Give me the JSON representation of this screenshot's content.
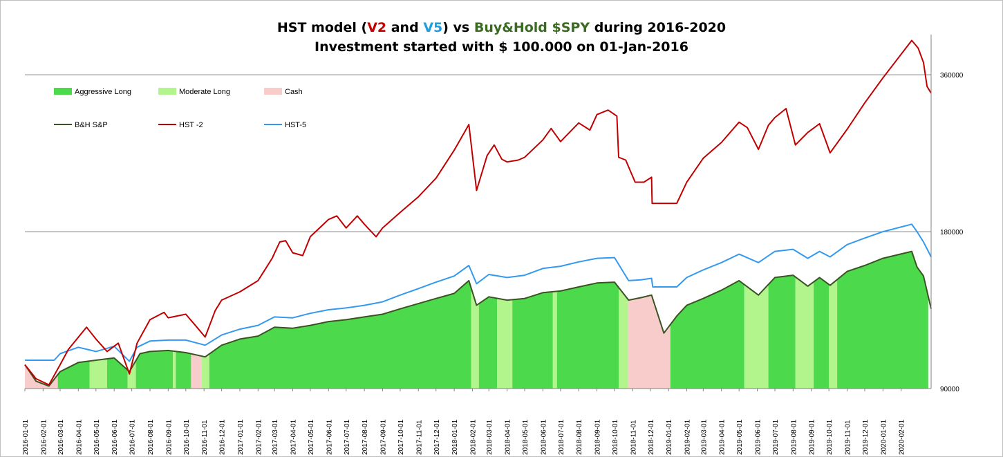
{
  "title": {
    "line1_a": "HST model (",
    "line1_v2": "V2",
    "line1_b": " and ",
    "line1_v5": "V5",
    "line1_c": ") vs ",
    "line1_bh": "Buy&Hold $SPY",
    "line1_d": " during 2016-2020",
    "line2": "Investment started with $ 100.000 on 01-Jan-2016"
  },
  "colors": {
    "aggressive": "#4cd94c",
    "moderate": "#b2f58c",
    "cash": "#f9cccc",
    "bh": "#3b5323",
    "hst2": "#c00000",
    "hst5": "#3399ee",
    "grid": "#808080"
  },
  "chart_data": {
    "type": "line",
    "y_scale": "log",
    "ylim": [
      90000,
      430000
    ],
    "y_ticks": [
      90000,
      180000,
      360000
    ],
    "y_tick_labels": [
      "90000",
      "180000",
      "360000"
    ],
    "x_tick_labels": [
      "2016-01-01",
      "2016-02-01",
      "2016-03-01",
      "2016-04-01",
      "2016-05-01",
      "2016-06-01",
      "2016-07-01",
      "2016-08-01",
      "2016-09-01",
      "2016-10-01",
      "2016-11-01",
      "2016-12-01",
      "2017-01-01",
      "2017-02-01",
      "2017-03-01",
      "2017-04-01",
      "2017-05-01",
      "2017-06-01",
      "2017-07-01",
      "2017-08-01",
      "2017-09-01",
      "2017-10-01",
      "2017-11-01",
      "2017-12-01",
      "2018-01-01",
      "2018-02-01",
      "2018-03-01",
      "2018-04-01",
      "2018-05-01",
      "2018-06-01",
      "2018-07-01",
      "2018-08-01",
      "2018-09-01",
      "2018-10-01",
      "2018-11-01",
      "2018-12-01",
      "2019-01-01",
      "2019-02-01",
      "2019-03-01",
      "2019-04-01",
      "2019-05-01",
      "2019-06-01",
      "2019-07-01",
      "2019-08-01",
      "2019-09-01",
      "2019-10-01",
      "2019-11-01",
      "2019-12-01",
      "2020-01-01",
      "2020-02-01"
    ],
    "x_end": "2020-03-23",
    "legend": [
      {
        "name": "Aggressive Long",
        "kind": "area",
        "color_key": "aggressive"
      },
      {
        "name": "Moderate Long",
        "kind": "area",
        "color_key": "moderate"
      },
      {
        "name": "Cash",
        "kind": "area",
        "color_key": "cash"
      },
      {
        "name": "B&H S&P",
        "kind": "line",
        "color_key": "bh"
      },
      {
        "name": "HST -2",
        "kind": "line",
        "color_key": "hst2"
      },
      {
        "name": "HST-5",
        "kind": "line",
        "color_key": "hst5"
      }
    ],
    "series": [
      {
        "name": "B&H S&P",
        "points": [
          [
            "2016-01-01",
            100000
          ],
          [
            "2016-01-20",
            93000
          ],
          [
            "2016-02-11",
            91000
          ],
          [
            "2016-03-01",
            97000
          ],
          [
            "2016-04-01",
            101000
          ],
          [
            "2016-05-01",
            102000
          ],
          [
            "2016-06-01",
            103000
          ],
          [
            "2016-06-27",
            97000
          ],
          [
            "2016-07-15",
            105000
          ],
          [
            "2016-08-01",
            106000
          ],
          [
            "2016-09-01",
            106500
          ],
          [
            "2016-10-01",
            105500
          ],
          [
            "2016-11-03",
            103500
          ],
          [
            "2016-12-01",
            109000
          ],
          [
            "2017-01-01",
            112000
          ],
          [
            "2017-02-01",
            113500
          ],
          [
            "2017-03-01",
            118000
          ],
          [
            "2017-04-01",
            117500
          ],
          [
            "2017-05-01",
            119000
          ],
          [
            "2017-06-01",
            121000
          ],
          [
            "2017-07-01",
            122000
          ],
          [
            "2017-08-01",
            123500
          ],
          [
            "2017-09-01",
            125000
          ],
          [
            "2017-10-01",
            128000
          ],
          [
            "2017-11-01",
            131000
          ],
          [
            "2017-12-01",
            134000
          ],
          [
            "2018-01-01",
            137000
          ],
          [
            "2018-01-26",
            145000
          ],
          [
            "2018-02-08",
            130000
          ],
          [
            "2018-03-01",
            135000
          ],
          [
            "2018-04-01",
            133000
          ],
          [
            "2018-05-01",
            134000
          ],
          [
            "2018-06-01",
            137500
          ],
          [
            "2018-07-01",
            138500
          ],
          [
            "2018-08-01",
            141000
          ],
          [
            "2018-09-01",
            143500
          ],
          [
            "2018-10-01",
            144000
          ],
          [
            "2018-10-25",
            133000
          ],
          [
            "2018-11-15",
            134500
          ],
          [
            "2018-12-03",
            136000
          ],
          [
            "2018-12-24",
            115000
          ],
          [
            "2019-01-15",
            124000
          ],
          [
            "2019-02-01",
            130000
          ],
          [
            "2019-03-01",
            134000
          ],
          [
            "2019-04-01",
            139000
          ],
          [
            "2019-05-01",
            145000
          ],
          [
            "2019-06-03",
            136000
          ],
          [
            "2019-07-01",
            147000
          ],
          [
            "2019-08-01",
            148500
          ],
          [
            "2019-08-26",
            141500
          ],
          [
            "2019-09-15",
            147000
          ],
          [
            "2019-10-03",
            142000
          ],
          [
            "2019-11-01",
            151000
          ],
          [
            "2019-12-01",
            155000
          ],
          [
            "2020-01-01",
            160000
          ],
          [
            "2020-02-19",
            165000
          ],
          [
            "2020-02-28",
            154000
          ],
          [
            "2020-03-10",
            148000
          ],
          [
            "2020-03-23",
            128000
          ]
        ]
      },
      {
        "name": "HST -2",
        "points": [
          [
            "2016-01-01",
            100000
          ],
          [
            "2016-01-20",
            94000
          ],
          [
            "2016-02-11",
            91500
          ],
          [
            "2016-03-01",
            100000
          ],
          [
            "2016-03-15",
            107000
          ],
          [
            "2016-04-15",
            118000
          ],
          [
            "2016-05-01",
            112000
          ],
          [
            "2016-05-20",
            106000
          ],
          [
            "2016-06-08",
            110000
          ],
          [
            "2016-06-27",
            96000
          ],
          [
            "2016-07-10",
            110000
          ],
          [
            "2016-08-01",
            122000
          ],
          [
            "2016-08-25",
            126000
          ],
          [
            "2016-09-01",
            123000
          ],
          [
            "2016-10-01",
            125000
          ],
          [
            "2016-10-20",
            118000
          ],
          [
            "2016-11-03",
            113000
          ],
          [
            "2016-11-20",
            127000
          ],
          [
            "2016-12-01",
            133000
          ],
          [
            "2017-01-01",
            138000
          ],
          [
            "2017-02-01",
            145000
          ],
          [
            "2017-02-25",
            160000
          ],
          [
            "2017-03-10",
            172000
          ],
          [
            "2017-03-20",
            173000
          ],
          [
            "2017-04-01",
            164000
          ],
          [
            "2017-04-18",
            162000
          ],
          [
            "2017-05-01",
            176000
          ],
          [
            "2017-06-01",
            190000
          ],
          [
            "2017-06-15",
            193000
          ],
          [
            "2017-07-01",
            183000
          ],
          [
            "2017-07-20",
            193000
          ],
          [
            "2017-08-01",
            186000
          ],
          [
            "2017-08-21",
            176000
          ],
          [
            "2017-09-01",
            183000
          ],
          [
            "2017-10-01",
            196000
          ],
          [
            "2017-11-01",
            210000
          ],
          [
            "2017-12-01",
            228000
          ],
          [
            "2018-01-01",
            258000
          ],
          [
            "2018-01-26",
            289000
          ],
          [
            "2018-02-08",
            216000
          ],
          [
            "2018-02-26",
            252000
          ],
          [
            "2018-03-10",
            264000
          ],
          [
            "2018-03-23",
            248000
          ],
          [
            "2018-04-01",
            245000
          ],
          [
            "2018-04-20",
            247000
          ],
          [
            "2018-05-01",
            250000
          ],
          [
            "2018-06-01",
            270000
          ],
          [
            "2018-06-15",
            284000
          ],
          [
            "2018-07-01",
            268000
          ],
          [
            "2018-08-01",
            291000
          ],
          [
            "2018-08-20",
            282000
          ],
          [
            "2018-09-01",
            302000
          ],
          [
            "2018-09-20",
            308000
          ],
          [
            "2018-10-05",
            300000
          ],
          [
            "2018-10-08",
            250000
          ],
          [
            "2018-10-20",
            247000
          ],
          [
            "2018-11-05",
            224000
          ],
          [
            "2018-11-20",
            224000
          ],
          [
            "2018-12-03",
            229000
          ],
          [
            "2018-12-04",
            204000
          ],
          [
            "2019-01-15",
            204000
          ],
          [
            "2019-02-01",
            224000
          ],
          [
            "2019-03-01",
            249000
          ],
          [
            "2019-04-01",
            267000
          ],
          [
            "2019-05-01",
            292000
          ],
          [
            "2019-05-15",
            285000
          ],
          [
            "2019-06-03",
            259000
          ],
          [
            "2019-06-20",
            288000
          ],
          [
            "2019-07-01",
            298000
          ],
          [
            "2019-07-20",
            310000
          ],
          [
            "2019-08-05",
            264000
          ],
          [
            "2019-08-26",
            279000
          ],
          [
            "2019-09-15",
            290000
          ],
          [
            "2019-10-03",
            255000
          ],
          [
            "2019-11-01",
            283000
          ],
          [
            "2019-12-01",
            318000
          ],
          [
            "2020-01-01",
            355000
          ],
          [
            "2020-02-19",
            419000
          ],
          [
            "2020-03-01",
            405000
          ],
          [
            "2020-03-10",
            380000
          ],
          [
            "2020-03-16",
            342000
          ],
          [
            "2020-03-23",
            332000
          ]
        ]
      },
      {
        "name": "HST-5",
        "points": [
          [
            "2016-01-01",
            102000
          ],
          [
            "2016-02-20",
            102000
          ],
          [
            "2016-03-01",
            105000
          ],
          [
            "2016-04-01",
            108000
          ],
          [
            "2016-05-01",
            106000
          ],
          [
            "2016-06-01",
            108500
          ],
          [
            "2016-06-27",
            101500
          ],
          [
            "2016-07-10",
            108000
          ],
          [
            "2016-08-01",
            111000
          ],
          [
            "2016-09-01",
            111500
          ],
          [
            "2016-10-01",
            111500
          ],
          [
            "2016-11-03",
            109000
          ],
          [
            "2016-12-01",
            114000
          ],
          [
            "2017-01-01",
            117000
          ],
          [
            "2017-02-01",
            119000
          ],
          [
            "2017-03-01",
            123500
          ],
          [
            "2017-04-01",
            123000
          ],
          [
            "2017-05-01",
            125500
          ],
          [
            "2017-06-01",
            127500
          ],
          [
            "2017-07-01",
            128500
          ],
          [
            "2017-08-01",
            130000
          ],
          [
            "2017-09-01",
            132000
          ],
          [
            "2017-10-01",
            136000
          ],
          [
            "2017-11-01",
            140000
          ],
          [
            "2017-12-01",
            144000
          ],
          [
            "2018-01-01",
            148000
          ],
          [
            "2018-01-26",
            155000
          ],
          [
            "2018-02-08",
            143000
          ],
          [
            "2018-03-01",
            149000
          ],
          [
            "2018-04-01",
            147000
          ],
          [
            "2018-05-01",
            148500
          ],
          [
            "2018-06-01",
            153000
          ],
          [
            "2018-07-01",
            154500
          ],
          [
            "2018-08-01",
            157500
          ],
          [
            "2018-09-01",
            160000
          ],
          [
            "2018-10-01",
            160500
          ],
          [
            "2018-10-25",
            145000
          ],
          [
            "2018-11-15",
            145500
          ],
          [
            "2018-12-03",
            146500
          ],
          [
            "2018-12-05",
            141000
          ],
          [
            "2019-01-15",
            141000
          ],
          [
            "2019-02-01",
            147000
          ],
          [
            "2019-03-01",
            152000
          ],
          [
            "2019-04-01",
            157000
          ],
          [
            "2019-05-01",
            163000
          ],
          [
            "2019-06-03",
            157000
          ],
          [
            "2019-07-01",
            165000
          ],
          [
            "2019-08-01",
            166500
          ],
          [
            "2019-08-26",
            160000
          ],
          [
            "2019-09-15",
            165000
          ],
          [
            "2019-10-03",
            161000
          ],
          [
            "2019-11-01",
            170000
          ],
          [
            "2019-12-01",
            175000
          ],
          [
            "2020-01-01",
            180000
          ],
          [
            "2020-02-19",
            186000
          ],
          [
            "2020-02-28",
            180000
          ],
          [
            "2020-03-10",
            172000
          ],
          [
            "2020-03-23",
            161000
          ]
        ]
      }
    ],
    "regimes": [
      {
        "state": "Cash",
        "start": "2016-01-01",
        "end": "2016-02-26"
      },
      {
        "state": "Aggressive Long",
        "start": "2016-02-26",
        "end": "2016-04-20"
      },
      {
        "state": "Moderate Long",
        "start": "2016-04-20",
        "end": "2016-05-20"
      },
      {
        "state": "Aggressive Long",
        "start": "2016-05-20",
        "end": "2016-06-24"
      },
      {
        "state": "Moderate Long",
        "start": "2016-06-24",
        "end": "2016-07-08"
      },
      {
        "state": "Aggressive Long",
        "start": "2016-07-08",
        "end": "2016-09-09"
      },
      {
        "state": "Moderate Long",
        "start": "2016-09-09",
        "end": "2016-09-14"
      },
      {
        "state": "Aggressive Long",
        "start": "2016-09-14",
        "end": "2016-10-10"
      },
      {
        "state": "Cash",
        "start": "2016-10-10",
        "end": "2016-10-28"
      },
      {
        "state": "Moderate Long",
        "start": "2016-10-28",
        "end": "2016-11-10"
      },
      {
        "state": "Aggressive Long",
        "start": "2016-11-10",
        "end": "2018-01-30"
      },
      {
        "state": "Moderate Long",
        "start": "2018-01-30",
        "end": "2018-02-12"
      },
      {
        "state": "Aggressive Long",
        "start": "2018-02-12",
        "end": "2018-03-15"
      },
      {
        "state": "Moderate Long",
        "start": "2018-03-15",
        "end": "2018-04-10"
      },
      {
        "state": "Aggressive Long",
        "start": "2018-04-10",
        "end": "2018-06-18"
      },
      {
        "state": "Moderate Long",
        "start": "2018-06-18",
        "end": "2018-06-25"
      },
      {
        "state": "Aggressive Long",
        "start": "2018-06-25",
        "end": "2018-10-08"
      },
      {
        "state": "Moderate Long",
        "start": "2018-10-08",
        "end": "2018-10-24"
      },
      {
        "state": "Cash",
        "start": "2018-10-24",
        "end": "2019-01-04"
      },
      {
        "state": "Aggressive Long",
        "start": "2019-01-04",
        "end": "2019-05-10"
      },
      {
        "state": "Moderate Long",
        "start": "2019-05-10",
        "end": "2019-06-20"
      },
      {
        "state": "Aggressive Long",
        "start": "2019-06-20",
        "end": "2019-08-05"
      },
      {
        "state": "Moderate Long",
        "start": "2019-08-05",
        "end": "2019-09-05"
      },
      {
        "state": "Aggressive Long",
        "start": "2019-09-05",
        "end": "2019-10-01"
      },
      {
        "state": "Moderate Long",
        "start": "2019-10-01",
        "end": "2019-10-15"
      },
      {
        "state": "Aggressive Long",
        "start": "2019-10-15",
        "end": "2020-03-18"
      }
    ]
  }
}
